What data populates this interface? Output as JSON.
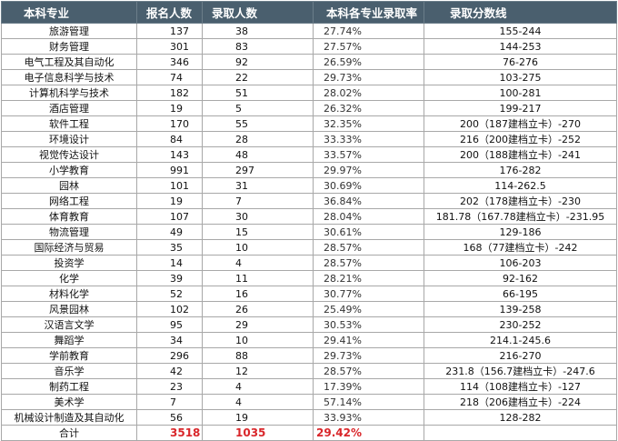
{
  "headers": [
    "本科专业",
    "报名人数",
    "录取人数",
    "本科各专业录取率",
    "录取分数线"
  ],
  "rows": [
    {
      "major": "旅游管理",
      "applicants": "137",
      "admitted": "38",
      "rate": "27.74%",
      "score": "155-244"
    },
    {
      "major": "财务管理",
      "applicants": "301",
      "admitted": "83",
      "rate": "27.57%",
      "score": "144-253"
    },
    {
      "major": "电气工程及其自动化",
      "applicants": "346",
      "admitted": "92",
      "rate": "26.59%",
      "score": "76-276"
    },
    {
      "major": "电子信息科学与技术",
      "applicants": "74",
      "admitted": "22",
      "rate": "29.73%",
      "score": "103-275"
    },
    {
      "major": "计算机科学与技术",
      "applicants": "182",
      "admitted": "51",
      "rate": "28.02%",
      "score": "100-281"
    },
    {
      "major": "酒店管理",
      "applicants": "19",
      "admitted": "5",
      "rate": "26.32%",
      "score": "199-217"
    },
    {
      "major": "软件工程",
      "applicants": "170",
      "admitted": "55",
      "rate": "32.35%",
      "score": "200（187建档立卡）-270"
    },
    {
      "major": "环境设计",
      "applicants": "84",
      "admitted": "28",
      "rate": "33.33%",
      "score": "216（200建档立卡）-252"
    },
    {
      "major": "视觉传达设计",
      "applicants": "143",
      "admitted": "48",
      "rate": "33.57%",
      "score": "200（188建档立卡）-241"
    },
    {
      "major": "小学教育",
      "applicants": "991",
      "admitted": "297",
      "rate": "29.97%",
      "score": "176-282"
    },
    {
      "major": "园林",
      "applicants": "101",
      "admitted": "31",
      "rate": "30.69%",
      "score": "114-262.5"
    },
    {
      "major": "网络工程",
      "applicants": "19",
      "admitted": "7",
      "rate": "36.84%",
      "score": "202（178建档立卡）-230"
    },
    {
      "major": "体育教育",
      "applicants": "107",
      "admitted": "30",
      "rate": "28.04%",
      "score": "181.78（167.78建档立卡）-231.95"
    },
    {
      "major": "物流管理",
      "applicants": "49",
      "admitted": "15",
      "rate": "30.61%",
      "score": "129-186"
    },
    {
      "major": "国际经济与贸易",
      "applicants": "35",
      "admitted": "10",
      "rate": "28.57%",
      "score": "168（77建档立卡）-242"
    },
    {
      "major": "投资学",
      "applicants": "14",
      "admitted": "4",
      "rate": "28.57%",
      "score": "106-203"
    },
    {
      "major": "化学",
      "applicants": "39",
      "admitted": "11",
      "rate": "28.21%",
      "score": "92-162"
    },
    {
      "major": "材料化学",
      "applicants": "52",
      "admitted": "16",
      "rate": "30.77%",
      "score": "66-195"
    },
    {
      "major": "风景园林",
      "applicants": "102",
      "admitted": "26",
      "rate": "25.49%",
      "score": "139-258"
    },
    {
      "major": "汉语言文学",
      "applicants": "95",
      "admitted": "29",
      "rate": "30.53%",
      "score": "230-252"
    },
    {
      "major": "舞蹈学",
      "applicants": "34",
      "admitted": "10",
      "rate": "29.41%",
      "score": "214.1-245.6"
    },
    {
      "major": "学前教育",
      "applicants": "296",
      "admitted": "88",
      "rate": "29.73%",
      "score": "216-270"
    },
    {
      "major": "音乐学",
      "applicants": "42",
      "admitted": "12",
      "rate": "28.57%",
      "score": "231.8（156.7建档立卡）-247.6"
    },
    {
      "major": "制药工程",
      "applicants": "23",
      "admitted": "4",
      "rate": "17.39%",
      "score": "114（108建档立卡）-127"
    },
    {
      "major": "美术学",
      "applicants": "7",
      "admitted": "4",
      "rate": "57.14%",
      "score": "218（206建档立卡）-224"
    },
    {
      "major": "机械设计制造及其自动化",
      "applicants": "56",
      "admitted": "19",
      "rate": "33.93%",
      "score": "128-282"
    }
  ],
  "total": {
    "label": "合计",
    "applicants": "3518",
    "admitted": "1035",
    "rate": "29.42%",
    "score": ""
  },
  "colors": {
    "header_bg": "#4a5f6e",
    "header_text": "#ffffff",
    "highlight": "#d9262a",
    "grid": "#a8a8a8"
  }
}
